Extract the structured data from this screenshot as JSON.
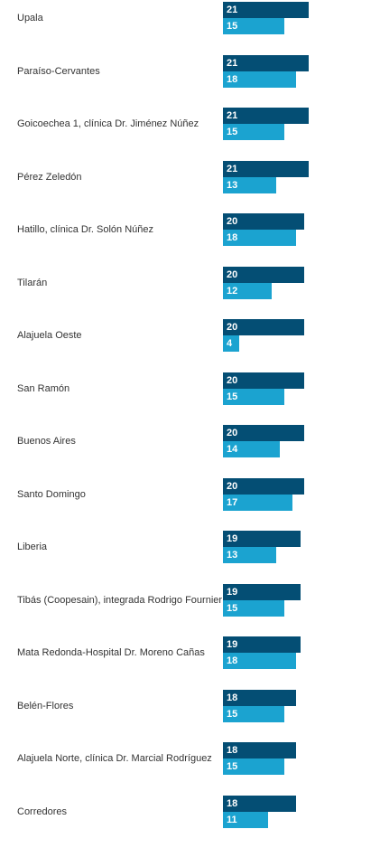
{
  "chart_data": {
    "type": "bar",
    "orientation": "horizontal",
    "categories": [
      "Upala",
      "Paraíso-Cervantes",
      "Goicoechea 1, clínica Dr. Jiménez Núñez",
      "Pérez Zeledón",
      "Hatillo, clínica Dr. Solón Núñez",
      "Tilarán",
      "Alajuela Oeste",
      "San Ramón",
      "Buenos Aires",
      "Santo Domingo",
      "Liberia",
      "Tibás (Coopesain), integrada Rodrigo Fournier",
      "Mata Redonda-Hospital Dr. Moreno Cañas",
      "Belén-Flores",
      "Alajuela Norte, clínica Dr. Marcial Rodríguez",
      "Corredores"
    ],
    "series": [
      {
        "values": [
          21,
          21,
          21,
          21,
          20,
          20,
          20,
          20,
          20,
          20,
          19,
          19,
          19,
          18,
          18,
          18
        ],
        "color": "#044e74"
      },
      {
        "values": [
          15,
          18,
          15,
          13,
          18,
          12,
          4,
          15,
          14,
          17,
          13,
          15,
          18,
          15,
          15,
          11
        ],
        "color": "#1ba3d0"
      }
    ],
    "xlim": [
      0,
      21
    ],
    "title": "",
    "xlabel": "",
    "ylabel": "",
    "grid": false,
    "legend": "none"
  }
}
